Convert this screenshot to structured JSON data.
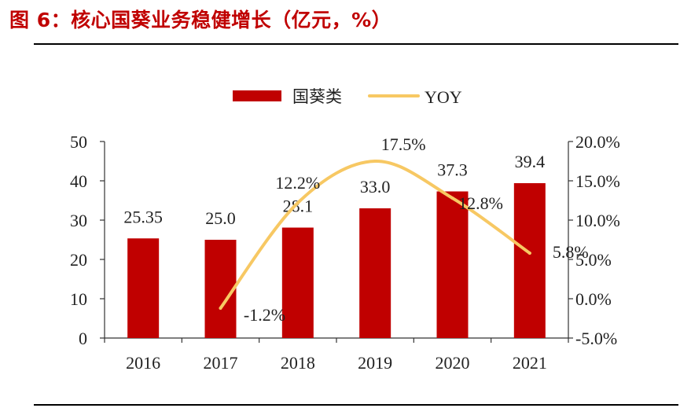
{
  "title": "图 6：核心国葵业务稳健增长（亿元，%）",
  "colors": {
    "bar": "#c00000",
    "line": "#f7c863",
    "title": "#c00000",
    "text": "#222222"
  },
  "chart_data": {
    "type": "bar",
    "title": "",
    "categories": [
      "2016",
      "2017",
      "2018",
      "2019",
      "2020",
      "2021"
    ],
    "legend": {
      "position": "top",
      "entries": [
        "国葵类",
        "YOY"
      ]
    },
    "series": [
      {
        "name": "国葵类",
        "type": "bar",
        "axis": "left",
        "values": [
          25.35,
          25.0,
          28.1,
          33.0,
          37.3,
          39.4
        ],
        "labels": [
          "25.35",
          "25.0",
          "28.1",
          "33.0",
          "37.3",
          "39.4"
        ]
      },
      {
        "name": "YOY",
        "type": "line",
        "axis": "right",
        "smooth": true,
        "x": [
          "2017",
          "2018",
          "2019",
          "2020",
          "2021"
        ],
        "values": [
          -1.2,
          12.2,
          17.5,
          12.8,
          5.8
        ],
        "labels": [
          "-1.2%",
          "12.2%",
          "17.5%",
          "12.8%",
          "5.8%"
        ]
      }
    ],
    "ylim_left": [
      0,
      50
    ],
    "yticks_left": [
      "0",
      "10",
      "20",
      "30",
      "40",
      "50"
    ],
    "ylim_right": [
      -5,
      20
    ],
    "yticks_right": [
      "-5.0%",
      "0.0%",
      "5.0%",
      "10.0%",
      "15.0%",
      "20.0%"
    ],
    "grid": false
  }
}
